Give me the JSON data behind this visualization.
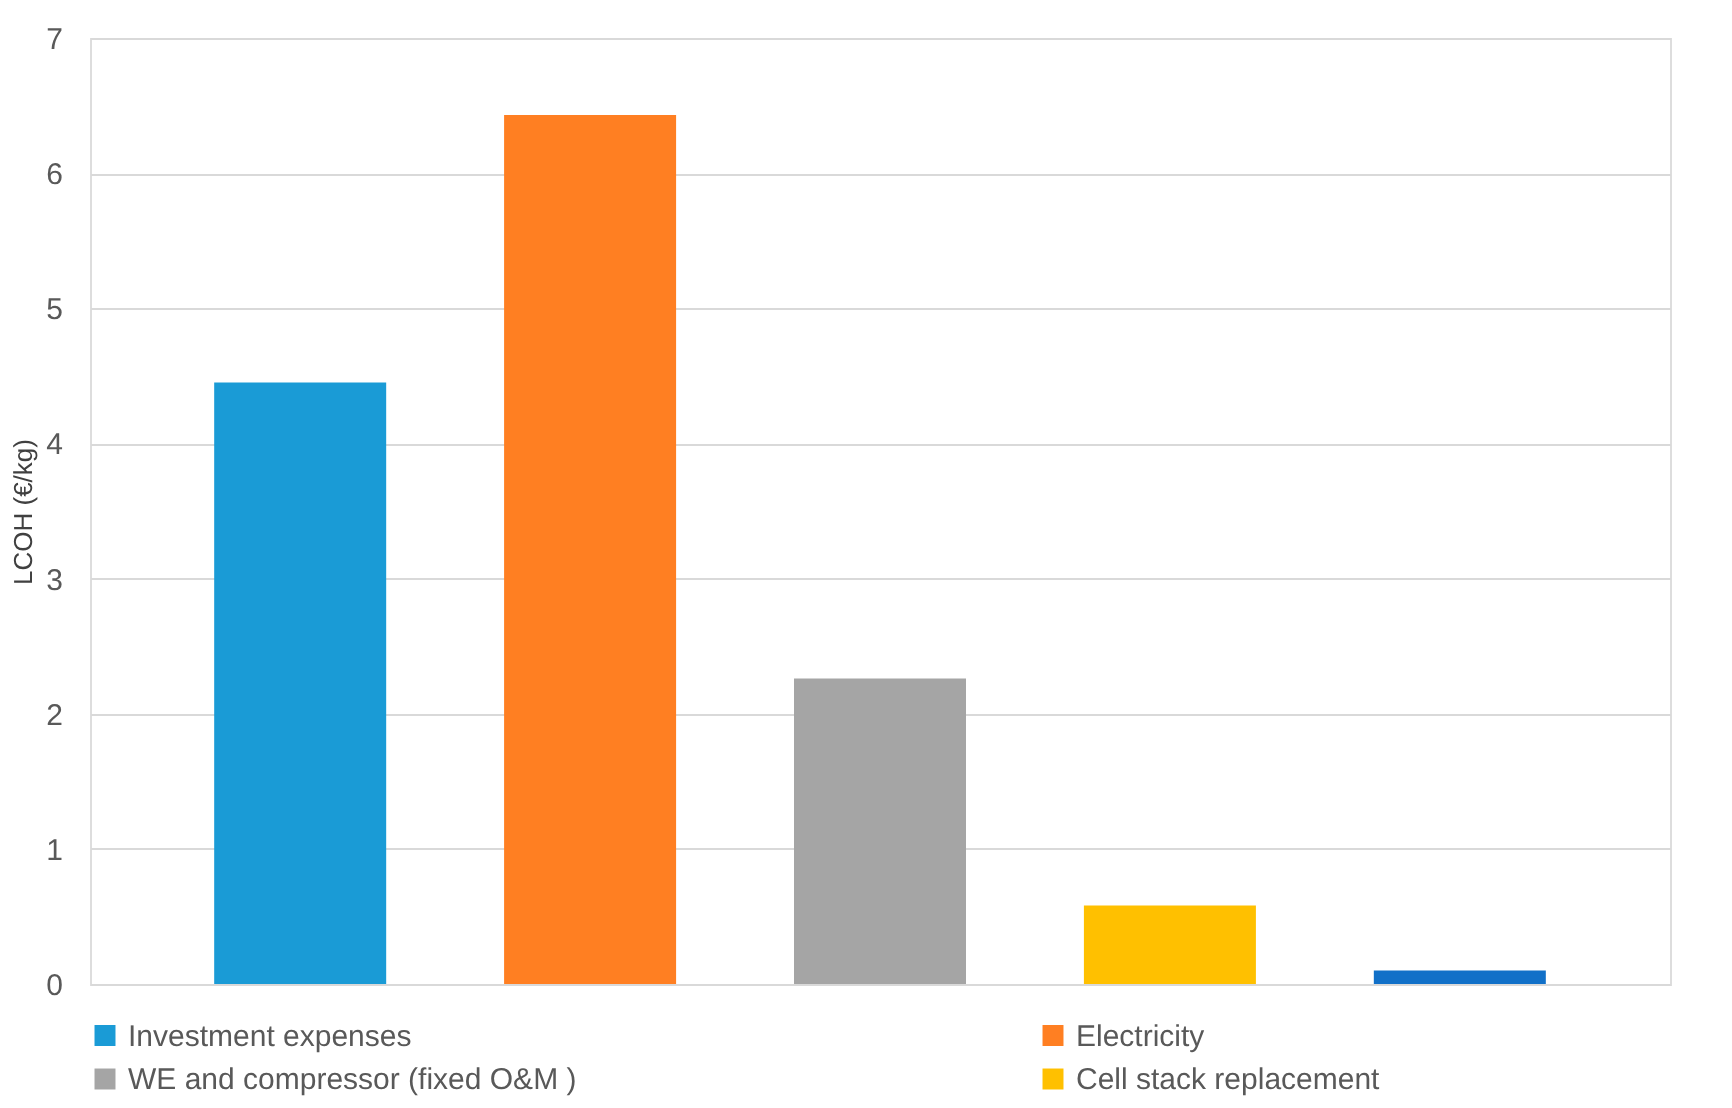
{
  "chart_data": {
    "type": "bar",
    "ylabel": "LCOH (€/kg)",
    "categories": [
      null,
      null,
      null,
      null,
      null
    ],
    "series": [
      {
        "name": "Investment expenses",
        "color": "#1a9bd6",
        "values": [
          4.45,
          null,
          null,
          null,
          null
        ]
      },
      {
        "name": "Electricity",
        "color": "#ff7f22",
        "values": [
          null,
          6.43,
          null,
          null,
          null
        ]
      },
      {
        "name": "WE and compressor (fixed O&M )",
        "color": "#a5a5a5",
        "values": [
          null,
          null,
          2.26,
          null,
          null
        ]
      },
      {
        "name": "Cell stack replacement",
        "color": "#ffc000",
        "values": [
          null,
          null,
          null,
          0.58,
          null
        ]
      },
      {
        "color": "#1170c8",
        "values": [
          null,
          null,
          null,
          null,
          0.1
        ]
      }
    ],
    "ylim": [
      0,
      7
    ],
    "yticks": [
      0,
      1,
      2,
      3,
      4,
      5,
      6,
      7
    ],
    "grid": "y",
    "legend": "bottom"
  }
}
